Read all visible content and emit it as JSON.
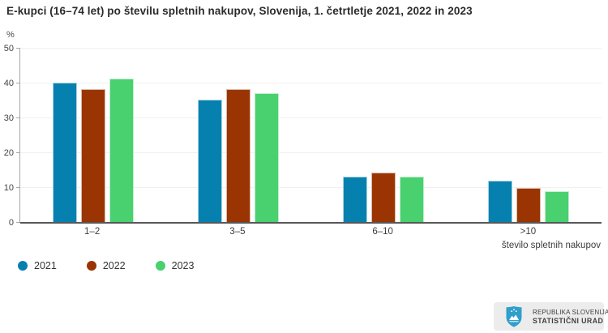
{
  "chart": {
    "title": "E-kupci (16–74 let) po številu spletnih nakupov, Slovenija, 1. četrtletje 2021, 2022 in 2023",
    "unit_label": "%",
    "x_axis_label": "število spletnih nakupov"
  },
  "chart_data": {
    "type": "bar",
    "title": "E-kupci (16–74 let) po številu spletnih nakupov, Slovenija, 1. četrtletje 2021, 2022 in 2023",
    "categories": [
      "1–2",
      "3–5",
      "6–10",
      ">10"
    ],
    "series": [
      {
        "name": "2021",
        "color": "#0681af",
        "values": [
          40.3,
          35.3,
          13.3,
          12.1
        ]
      },
      {
        "name": "2022",
        "color": "#9a3503",
        "values": [
          38.3,
          38.4,
          14.4,
          10.1
        ]
      },
      {
        "name": "2023",
        "color": "#49d06f",
        "values": [
          41.4,
          37.3,
          13.2,
          9.1
        ]
      }
    ],
    "xlabel": "število spletnih nakupov",
    "ylabel": "%",
    "ylim": [
      0,
      50
    ],
    "yticks": [
      0,
      10,
      20,
      30,
      40,
      50
    ],
    "grid": true,
    "legend_position": "bottom-left"
  },
  "colors": {
    "axis_line": "#a6a6a6",
    "baseline": "#58585a",
    "gridline": "#f0f0f0",
    "logo_shield": "#2f9fcb"
  },
  "footer": {
    "logo_line1": "REPUBLIKA SLOVENIJA",
    "logo_line2": "STATISTIČNI URAD"
  }
}
